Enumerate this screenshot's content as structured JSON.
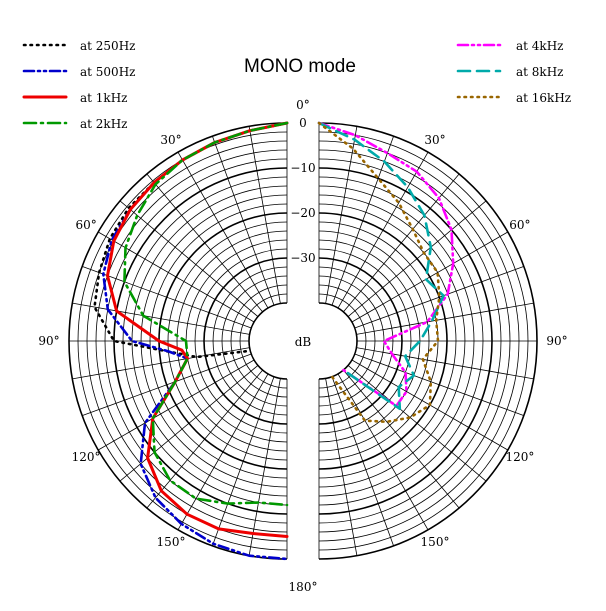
{
  "chart_data": {
    "type": "line",
    "subtype": "polar-split",
    "title": "MONO mode",
    "unit_label": "dB",
    "radial_ticks": [
      "0",
      "−10",
      "−20",
      "−30"
    ],
    "radial_range_db": [
      -40,
      0
    ],
    "angle_ticks": [
      {
        "deg": 0,
        "label": "0°"
      },
      {
        "deg": 30,
        "label": "30°"
      },
      {
        "deg": 60,
        "label": "60°"
      },
      {
        "deg": 90,
        "label": "90°"
      },
      {
        "deg": 120,
        "label": "120°"
      },
      {
        "deg": 150,
        "label": "150°"
      },
      {
        "deg": 180,
        "label": "180°"
      }
    ],
    "grid": true,
    "legend_left": "top-left",
    "legend_right": "top-right",
    "series": [
      {
        "name": "at 250Hz",
        "side": "left",
        "color": "#000000",
        "style": "dot",
        "points": [
          [
            0,
            0
          ],
          [
            10,
            -1
          ],
          [
            20,
            -1.5
          ],
          [
            30,
            -2
          ],
          [
            40,
            -2.5
          ],
          [
            50,
            -2.5
          ],
          [
            60,
            -3
          ],
          [
            70,
            -4
          ],
          [
            80,
            -5
          ],
          [
            90,
            -10
          ],
          [
            100,
            -28
          ],
          [
            105,
            -40
          ]
        ]
      },
      {
        "name": "at 500Hz",
        "side": "left",
        "color": "#0000cc",
        "style": "dashdotdot",
        "points": [
          [
            0,
            0
          ],
          [
            10,
            -1
          ],
          [
            20,
            -1.5
          ],
          [
            30,
            -2
          ],
          [
            40,
            -2.5
          ],
          [
            50,
            -3
          ],
          [
            60,
            -3.5
          ],
          [
            70,
            -5
          ],
          [
            80,
            -8
          ],
          [
            90,
            -14
          ],
          [
            95,
            -22
          ],
          [
            100,
            -26
          ],
          [
            110,
            -22
          ],
          [
            120,
            -12
          ],
          [
            130,
            -6
          ],
          [
            140,
            -3
          ],
          [
            150,
            -1.5
          ],
          [
            160,
            -0.5
          ],
          [
            170,
            0
          ],
          [
            180,
            0
          ]
        ]
      },
      {
        "name": "at 1kHz",
        "side": "left",
        "color": "#ee0000",
        "style": "solid",
        "points": [
          [
            0,
            0
          ],
          [
            10,
            -1
          ],
          [
            20,
            -1.5
          ],
          [
            30,
            -2
          ],
          [
            40,
            -2.5
          ],
          [
            50,
            -3
          ],
          [
            60,
            -4
          ],
          [
            70,
            -6
          ],
          [
            80,
            -10
          ],
          [
            90,
            -20
          ],
          [
            95,
            -25
          ],
          [
            100,
            -26
          ],
          [
            110,
            -22
          ],
          [
            120,
            -14
          ],
          [
            130,
            -8
          ],
          [
            140,
            -5
          ],
          [
            150,
            -4
          ],
          [
            160,
            -4
          ],
          [
            170,
            -5
          ],
          [
            180,
            -5
          ]
        ]
      },
      {
        "name": "at 2kHz",
        "side": "left",
        "color": "#009900",
        "style": "dashdot",
        "points": [
          [
            0,
            0
          ],
          [
            10,
            -1
          ],
          [
            20,
            -1.5
          ],
          [
            30,
            -2
          ],
          [
            40,
            -3
          ],
          [
            50,
            -5
          ],
          [
            60,
            -7
          ],
          [
            70,
            -10
          ],
          [
            80,
            -16
          ],
          [
            90,
            -26
          ],
          [
            100,
            -26
          ],
          [
            110,
            -22
          ],
          [
            120,
            -14
          ],
          [
            130,
            -10
          ],
          [
            140,
            -8
          ],
          [
            150,
            -8
          ],
          [
            160,
            -10
          ],
          [
            170,
            -12
          ],
          [
            180,
            -12
          ]
        ]
      },
      {
        "name": "at 4kHz",
        "side": "right",
        "color": "#ff00ff",
        "style": "dashdotdot",
        "points": [
          [
            0,
            0
          ],
          [
            10,
            -2
          ],
          [
            20,
            -4
          ],
          [
            30,
            -5
          ],
          [
            40,
            -7
          ],
          [
            50,
            -10
          ],
          [
            60,
            -14
          ],
          [
            70,
            -18
          ],
          [
            80,
            -24
          ],
          [
            90,
            -34
          ],
          [
            100,
            -32
          ],
          [
            110,
            -28
          ],
          [
            120,
            -26
          ],
          [
            130,
            -26
          ],
          [
            140,
            -40
          ]
        ]
      },
      {
        "name": "at 8kHz",
        "side": "right",
        "color": "#00aaaa",
        "style": "dash",
        "points": [
          [
            0,
            0
          ],
          [
            10,
            -3
          ],
          [
            20,
            -6
          ],
          [
            30,
            -9
          ],
          [
            40,
            -12
          ],
          [
            50,
            -16
          ],
          [
            60,
            -21
          ],
          [
            70,
            -19
          ],
          [
            80,
            -23
          ],
          [
            90,
            -26
          ],
          [
            100,
            -29
          ],
          [
            110,
            -26
          ],
          [
            120,
            -28
          ],
          [
            130,
            -25
          ],
          [
            140,
            -40
          ]
        ]
      },
      {
        "name": "at 16kHz",
        "side": "right",
        "color": "#996600",
        "style": "dot",
        "points": [
          [
            0,
            0
          ],
          [
            10,
            -5
          ],
          [
            20,
            -10
          ],
          [
            30,
            -13
          ],
          [
            40,
            -16
          ],
          [
            50,
            -18
          ],
          [
            60,
            -18
          ],
          [
            70,
            -20
          ],
          [
            80,
            -22
          ],
          [
            90,
            -22
          ],
          [
            100,
            -25
          ],
          [
            110,
            -22
          ],
          [
            120,
            -20
          ],
          [
            130,
            -22
          ],
          [
            140,
            -25
          ],
          [
            150,
            -28
          ],
          [
            160,
            -40
          ]
        ]
      }
    ]
  }
}
